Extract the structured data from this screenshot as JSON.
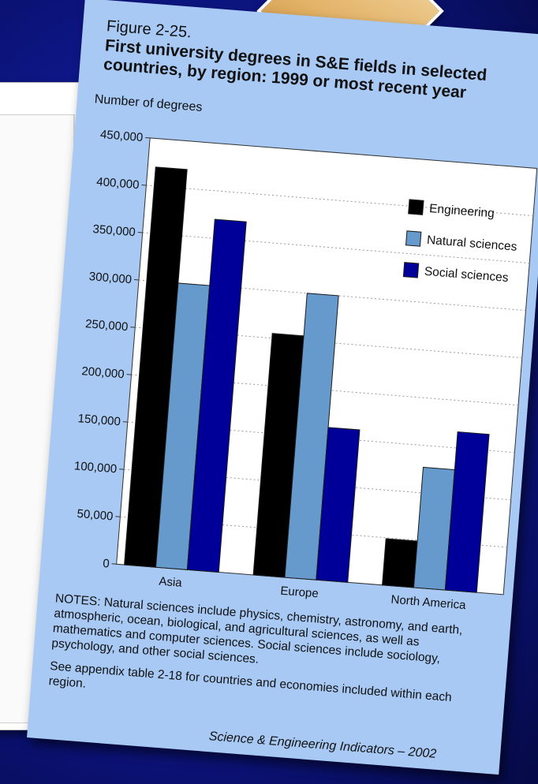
{
  "figure": {
    "label": "Figure 2-25.",
    "title": "First university degrees in S&E fields in selected\ncountries, by region: 1999 or most recent year",
    "notes": "NOTES: Natural sciences include physics, chemistry, astronomy, and earth, atmospheric, ocean, biological, and agricultural sciences, as well as mathematics and computer sciences. Social sciences include sociology, psychology, and other social sciences.",
    "see_appendix": "See appendix table 2-18 for countries and economies included within each region.",
    "source": "Science & Engineering Indicators – 2002"
  },
  "colors": {
    "background": "#121b9c",
    "card": "#a7c9f4",
    "engineering": "#000000",
    "natural_sciences": "#6699cc",
    "social_sciences": "#000099"
  },
  "chart_data": {
    "type": "bar",
    "title": "First university degrees in S&E fields in selected countries, by region: 1999 or most recent year",
    "xlabel": "",
    "ylabel": "Number of degrees",
    "categories": [
      "Asia",
      "Europe",
      "North America"
    ],
    "series": [
      {
        "name": "Engineering",
        "values": [
          420000,
          255000,
          49000
        ],
        "color": "#000000"
      },
      {
        "name": "Natural sciences",
        "values": [
          300000,
          300000,
          127000
        ],
        "color": "#6699cc"
      },
      {
        "name": "Social sciences",
        "values": [
          370000,
          161000,
          167000
        ],
        "color": "#000099"
      }
    ],
    "ylim": [
      0,
      450000
    ],
    "yticks": [
      0,
      50000,
      100000,
      150000,
      200000,
      250000,
      300000,
      350000,
      400000,
      450000
    ],
    "ytick_labels": [
      "0",
      "50,000",
      "100,000",
      "150,000",
      "200,000",
      "250,000",
      "300,000",
      "350,000",
      "400,000",
      "450,000"
    ],
    "grid": true,
    "legend_position": "top-right"
  }
}
